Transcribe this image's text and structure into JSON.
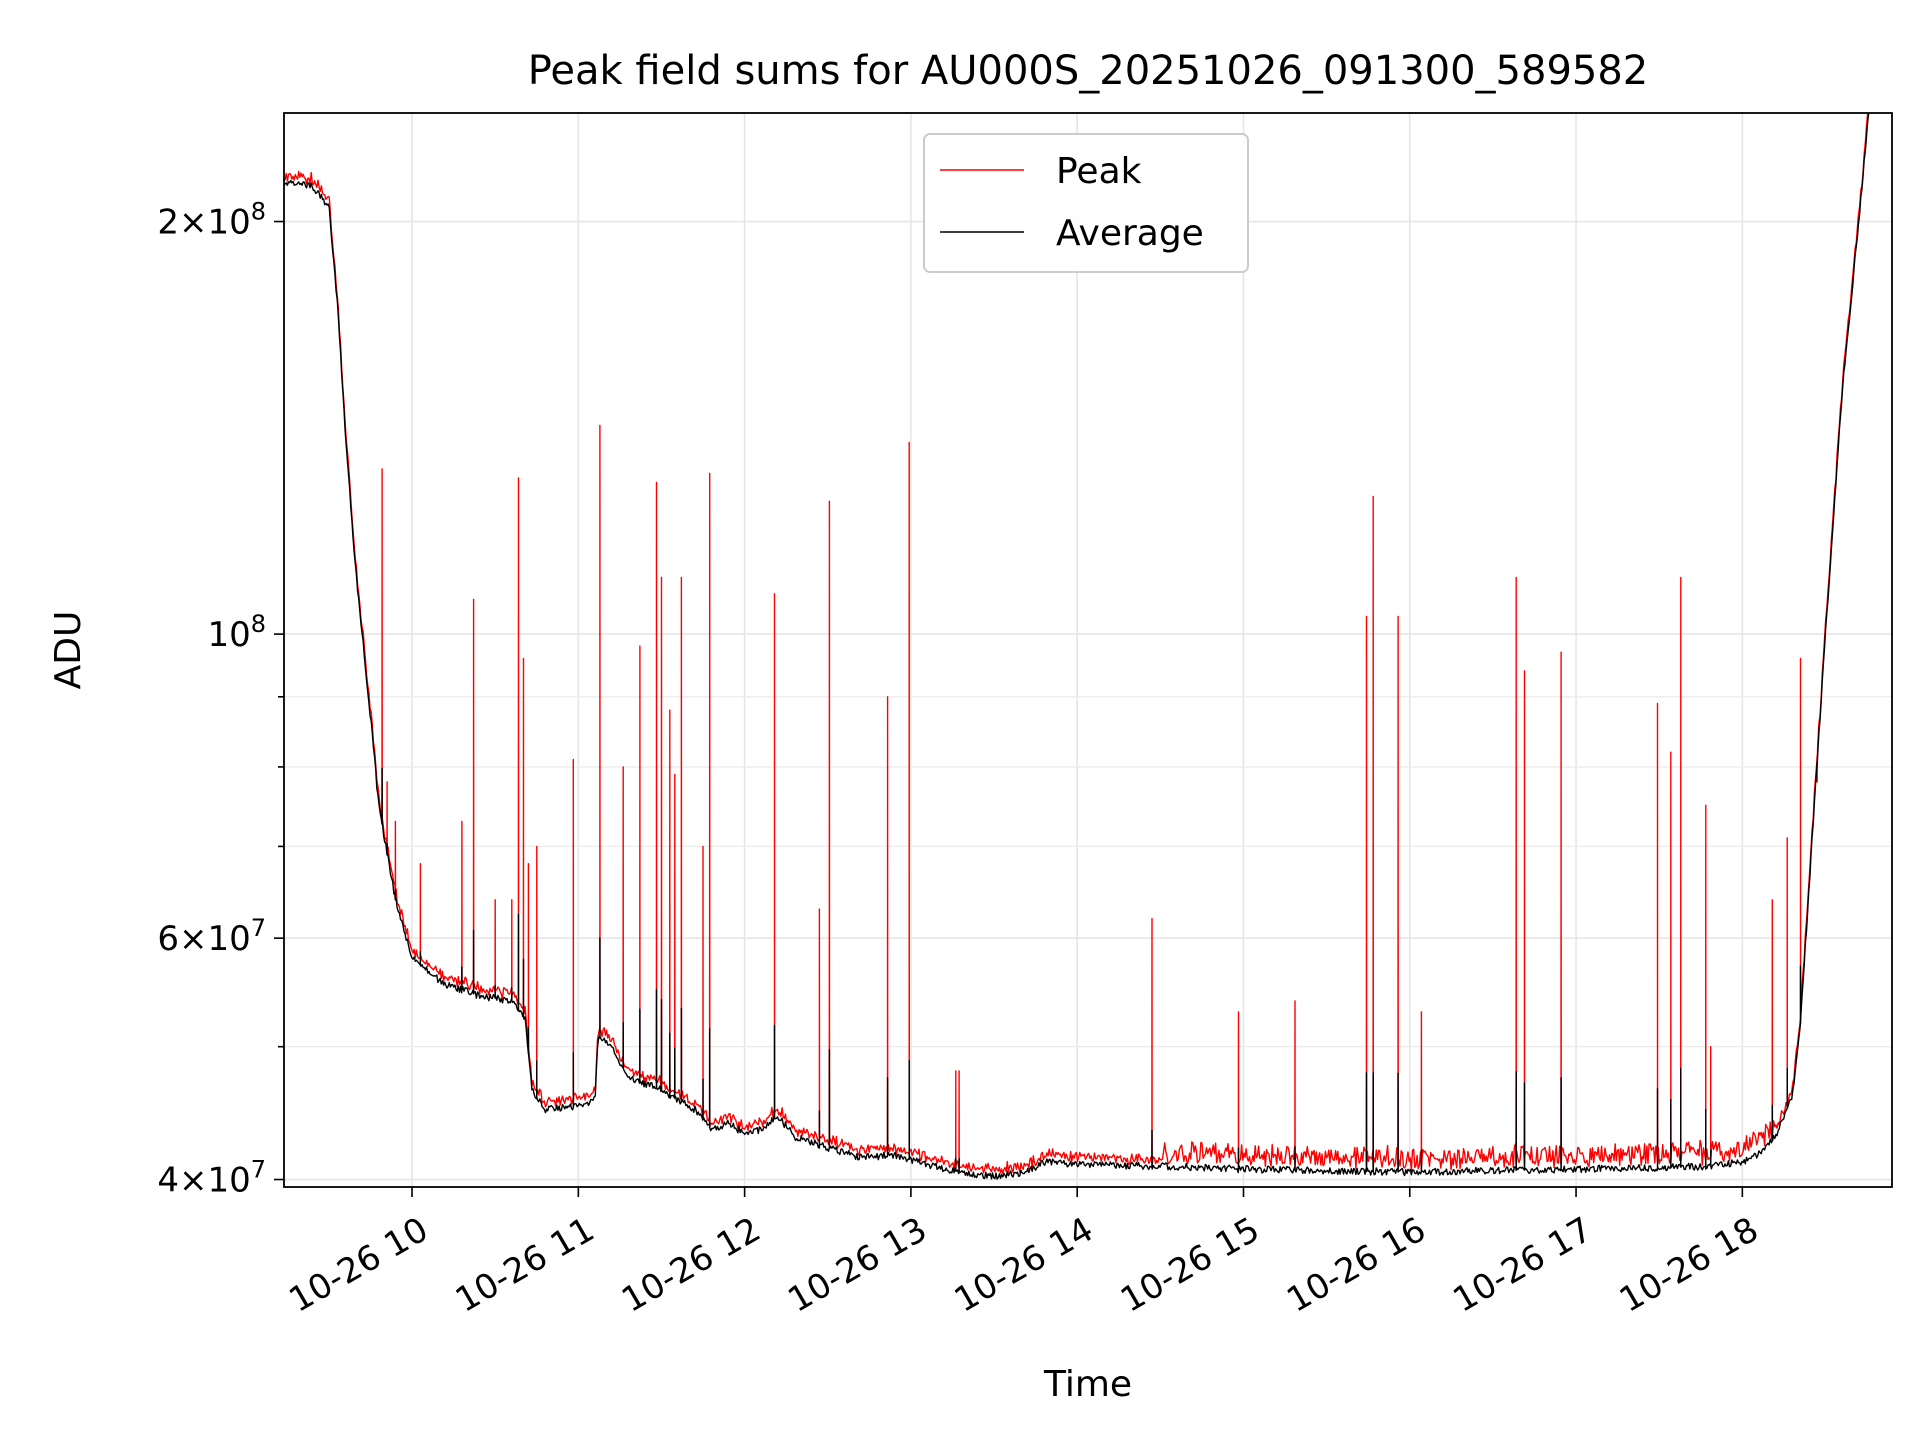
{
  "chart_data": {
    "type": "line",
    "title": "Peak field sums for AU000S_20251026_091300_589582",
    "xlabel": "Time",
    "ylabel": "ADU",
    "y_scale": "log",
    "ylim": [
      39500000,
      240000000
    ],
    "xlim_hours": [
      9.23,
      18.9
    ],
    "x_ticks": [
      {
        "hour": 10,
        "label": "10-26 10"
      },
      {
        "hour": 11,
        "label": "10-26 11"
      },
      {
        "hour": 12,
        "label": "10-26 12"
      },
      {
        "hour": 13,
        "label": "10-26 13"
      },
      {
        "hour": 14,
        "label": "10-26 14"
      },
      {
        "hour": 15,
        "label": "10-26 15"
      },
      {
        "hour": 16,
        "label": "10-26 16"
      },
      {
        "hour": 17,
        "label": "10-26 17"
      },
      {
        "hour": 18,
        "label": "10-26 18"
      }
    ],
    "y_ticks": [
      {
        "value": 40000000,
        "mantissa": "4",
        "exponent": "7"
      },
      {
        "value": 60000000,
        "mantissa": "6",
        "exponent": "7"
      },
      {
        "value": 100000000,
        "mantissa": "",
        "exponent": "8"
      },
      {
        "value": 200000000,
        "mantissa": "2",
        "exponent": "8"
      }
    ],
    "y_minor_ticks": [
      50000000,
      70000000,
      80000000,
      90000000
    ],
    "grid": true,
    "legend_position": "upper-center",
    "series": [
      {
        "name": "Peak",
        "color": "#ff0000"
      },
      {
        "name": "Average",
        "color": "#000000"
      }
    ],
    "baseline_average": [
      [
        9.23,
        212000000
      ],
      [
        9.3,
        214000000
      ],
      [
        9.4,
        212000000
      ],
      [
        9.5,
        205000000
      ],
      [
        9.55,
        175000000
      ],
      [
        9.6,
        140000000
      ],
      [
        9.65,
        115000000
      ],
      [
        9.7,
        100000000
      ],
      [
        9.75,
        87000000
      ],
      [
        9.8,
        75000000
      ],
      [
        9.9,
        64000000
      ],
      [
        10.0,
        58000000
      ],
      [
        10.2,
        55500000
      ],
      [
        10.4,
        54500000
      ],
      [
        10.6,
        54000000
      ],
      [
        10.68,
        52500000
      ],
      [
        10.72,
        46500000
      ],
      [
        10.8,
        45000000
      ],
      [
        11.0,
        45200000
      ],
      [
        11.1,
        45800000
      ],
      [
        11.12,
        51000000
      ],
      [
        11.2,
        50000000
      ],
      [
        11.3,
        47500000
      ],
      [
        11.5,
        46500000
      ],
      [
        11.7,
        45000000
      ],
      [
        11.8,
        43500000
      ],
      [
        11.9,
        44000000
      ],
      [
        12.0,
        43200000
      ],
      [
        12.1,
        43500000
      ],
      [
        12.2,
        44500000
      ],
      [
        12.3,
        43000000
      ],
      [
        12.5,
        42200000
      ],
      [
        12.7,
        41500000
      ],
      [
        12.9,
        41700000
      ],
      [
        13.1,
        41000000
      ],
      [
        13.3,
        40500000
      ],
      [
        13.5,
        40200000
      ],
      [
        13.7,
        40500000
      ],
      [
        13.8,
        41200000
      ],
      [
        14.0,
        41000000
      ],
      [
        14.5,
        40900000
      ],
      [
        15.0,
        40700000
      ],
      [
        15.5,
        40600000
      ],
      [
        16.0,
        40500000
      ],
      [
        16.5,
        40600000
      ],
      [
        17.0,
        40700000
      ],
      [
        17.5,
        40800000
      ],
      [
        17.8,
        40900000
      ],
      [
        18.0,
        41200000
      ],
      [
        18.1,
        41800000
      ],
      [
        18.2,
        43000000
      ],
      [
        18.3,
        46000000
      ],
      [
        18.35,
        52000000
      ],
      [
        18.4,
        65000000
      ],
      [
        18.5,
        100000000
      ],
      [
        18.6,
        150000000
      ],
      [
        18.7,
        200000000
      ],
      [
        18.76,
        240000000
      ]
    ],
    "peak_offset_fraction": 0.006,
    "peak_spikes": [
      [
        9.82,
        132000000
      ],
      [
        9.85,
        78000000
      ],
      [
        9.9,
        73000000
      ],
      [
        10.05,
        68000000
      ],
      [
        10.3,
        73000000
      ],
      [
        10.37,
        106000000
      ],
      [
        10.5,
        64000000
      ],
      [
        10.6,
        64000000
      ],
      [
        10.64,
        130000000
      ],
      [
        10.67,
        96000000
      ],
      [
        10.7,
        68000000
      ],
      [
        10.75,
        70000000
      ],
      [
        10.97,
        81000000
      ],
      [
        11.13,
        142000000
      ],
      [
        11.27,
        80000000
      ],
      [
        11.37,
        98000000
      ],
      [
        11.47,
        129000000
      ],
      [
        11.5,
        110000000
      ],
      [
        11.55,
        88000000
      ],
      [
        11.58,
        79000000
      ],
      [
        11.62,
        110000000
      ],
      [
        11.75,
        70000000
      ],
      [
        11.79,
        131000000
      ],
      [
        12.18,
        107000000
      ],
      [
        12.45,
        63000000
      ],
      [
        12.51,
        125000000
      ],
      [
        12.86,
        90000000
      ],
      [
        12.99,
        138000000
      ],
      [
        13.27,
        48000000
      ],
      [
        13.29,
        48000000
      ],
      [
        14.45,
        62000000
      ],
      [
        14.97,
        53000000
      ],
      [
        15.31,
        54000000
      ],
      [
        15.74,
        103000000
      ],
      [
        15.78,
        126000000
      ],
      [
        15.93,
        103000000
      ],
      [
        16.07,
        53000000
      ],
      [
        16.64,
        110000000
      ],
      [
        16.69,
        94000000
      ],
      [
        16.91,
        97000000
      ],
      [
        17.49,
        89000000
      ],
      [
        17.57,
        82000000
      ],
      [
        17.63,
        110000000
      ],
      [
        17.78,
        75000000
      ],
      [
        17.81,
        50000000
      ],
      [
        18.18,
        64000000
      ],
      [
        18.27,
        71000000
      ],
      [
        18.35,
        96000000
      ],
      [
        18.45,
        78000000
      ]
    ]
  }
}
